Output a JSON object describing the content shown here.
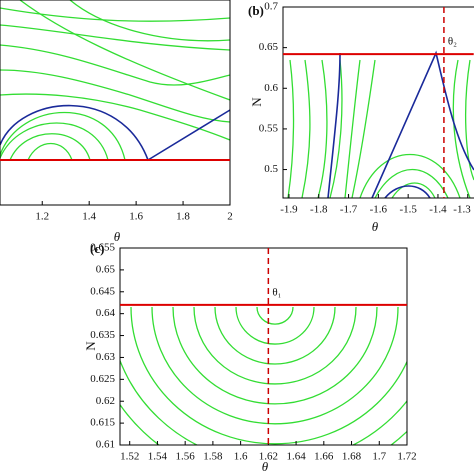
{
  "chart_data": [
    {
      "type": "line",
      "xlabel": "θ",
      "xlim": [
        1.02,
        2.0
      ],
      "xticks": [
        1.2,
        1.4,
        1.6,
        1.8,
        2
      ]
    },
    {
      "type": "line",
      "label": "(b)",
      "xlabel": "θ",
      "ylabel": "N",
      "xlim": [
        -1.92,
        -1.28
      ],
      "ylim": [
        0.465,
        0.7
      ],
      "xticks": [
        -1.9,
        -1.8,
        -1.7,
        -1.6,
        -1.5,
        -1.4,
        -1.3
      ],
      "yticks": [
        0.5,
        0.55,
        0.6,
        0.65,
        0.7
      ],
      "hline": 0.642,
      "vline": -1.38,
      "annotation": "θ₂"
    },
    {
      "type": "line",
      "label": "(c)",
      "xlabel": "θ",
      "ylabel": "N",
      "xlim": [
        1.513,
        1.72
      ],
      "ylim": [
        0.61,
        0.655
      ],
      "xticks": [
        1.52,
        1.54,
        1.56,
        1.58,
        1.6,
        1.62,
        1.64,
        1.66,
        1.68,
        1.7,
        1.72
      ],
      "yticks": [
        0.61,
        0.615,
        0.62,
        0.625,
        0.63,
        0.635,
        0.64,
        0.645,
        0.65,
        0.655
      ],
      "hline": 0.642,
      "vline": 1.62,
      "annotation": "θ₁"
    }
  ]
}
